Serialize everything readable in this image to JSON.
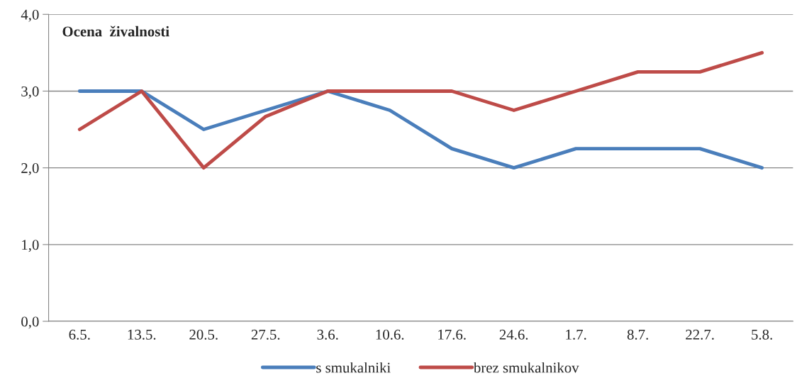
{
  "chart_data": {
    "type": "line",
    "title": "Ocena  živalnosti",
    "categories": [
      "6.5.",
      "13.5.",
      "20.5.",
      "27.5.",
      "3.6.",
      "10.6.",
      "17.6.",
      "24.6.",
      "1.7.",
      "8.7.",
      "22.7.",
      "5.8."
    ],
    "series": [
      {
        "name": "s smukalniki",
        "color": "#4a7ebb",
        "values": [
          3,
          3,
          2.5,
          2.75,
          3,
          2.75,
          2.25,
          2,
          2.25,
          2.25,
          2.25,
          2
        ]
      },
      {
        "name": "brez smukalnikov",
        "color": "#be4b48",
        "values": [
          2.5,
          3,
          2,
          2.67,
          3,
          3,
          3,
          2.75,
          3,
          3.25,
          3.25,
          3.5
        ]
      }
    ],
    "ylim": [
      0,
      4
    ],
    "yticks": [
      {
        "value": 0,
        "label": "0,0"
      },
      {
        "value": 1,
        "label": "1,0"
      },
      {
        "value": 2,
        "label": "2,0"
      },
      {
        "value": 3,
        "label": "3,0"
      },
      {
        "value": 4,
        "label": "4,0"
      }
    ],
    "grid": "y",
    "legend": "bottom",
    "marker": "none",
    "line_style": "solid"
  }
}
